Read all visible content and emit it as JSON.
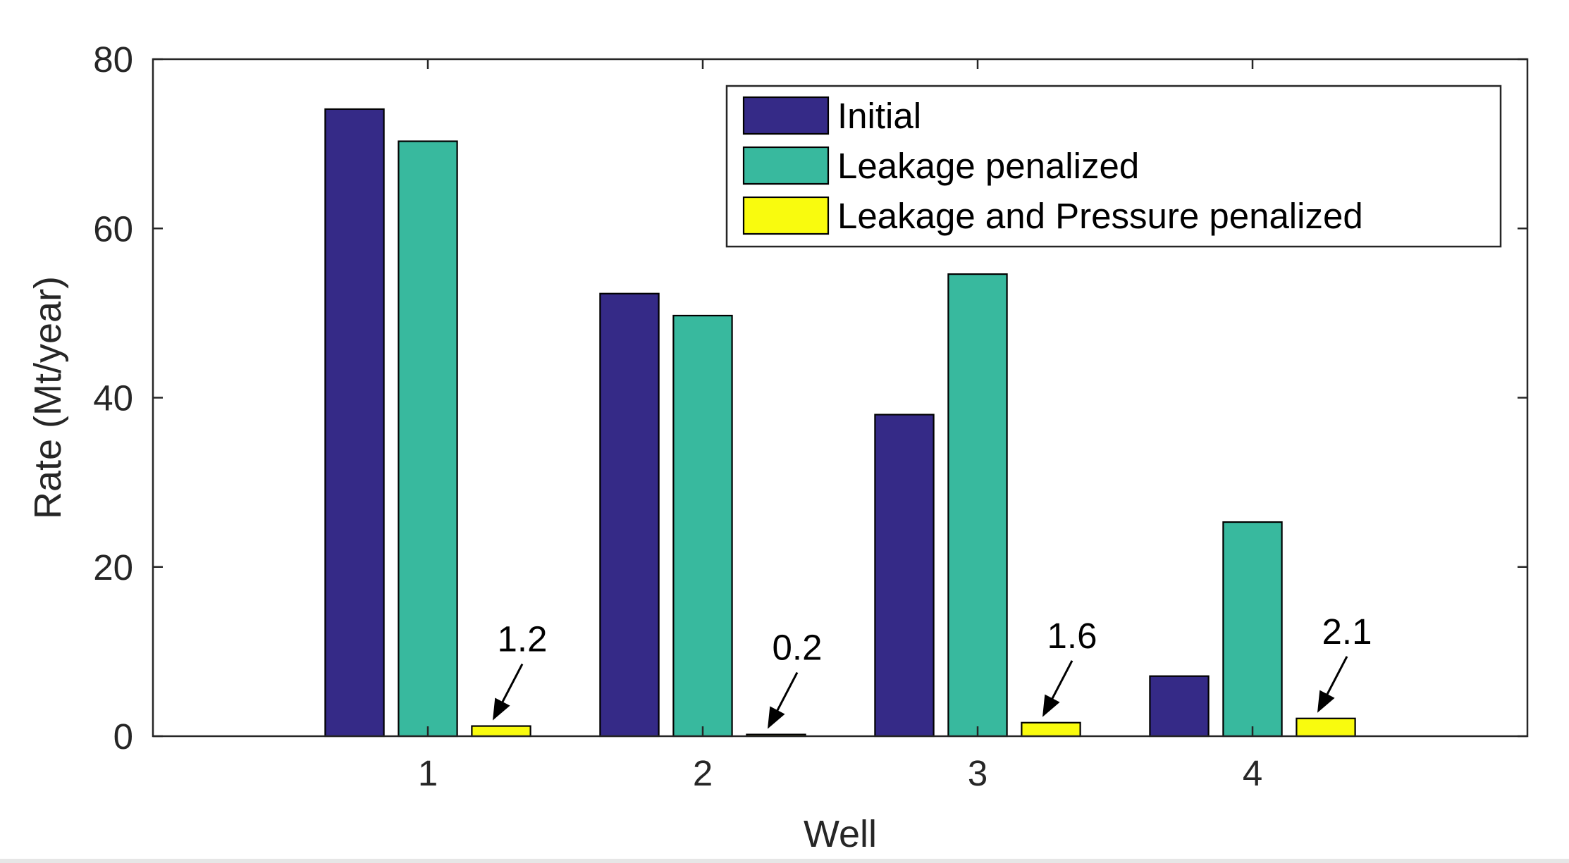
{
  "chart_data": {
    "type": "bar",
    "categories": [
      "1",
      "2",
      "3",
      "4"
    ],
    "xlabel": "Well",
    "ylabel": "Rate (Mt/year)",
    "ylim": [
      0,
      80
    ],
    "xlim": [
      0,
      5
    ],
    "yticks": [
      "0",
      "20",
      "40",
      "60",
      "80"
    ],
    "grid": false,
    "legend_position": "top-right",
    "series": [
      {
        "name": "Initial",
        "color": "#352A87",
        "values": [
          74.1,
          52.3,
          38.0,
          7.1
        ]
      },
      {
        "name": "Leakage penalized",
        "color": "#38B99E",
        "values": [
          70.3,
          49.7,
          54.6,
          25.3
        ]
      },
      {
        "name": "Leakage and Pressure penalized",
        "color": "#F9FB0E",
        "values": [
          1.2,
          0.2,
          1.6,
          2.1
        ]
      }
    ],
    "annotations": [
      {
        "text": "1.2",
        "category": "1",
        "series": 2
      },
      {
        "text": "0.2",
        "category": "2",
        "series": 2
      },
      {
        "text": "1.6",
        "category": "3",
        "series": 2
      },
      {
        "text": "2.1",
        "category": "4",
        "series": 2
      }
    ]
  }
}
